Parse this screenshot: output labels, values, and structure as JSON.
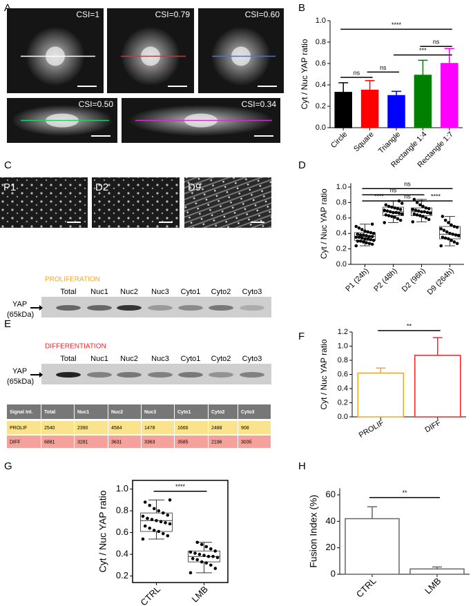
{
  "panel_labels": [
    "A",
    "B",
    "C",
    "D",
    "E",
    "F",
    "G",
    "H"
  ],
  "micrographs_a": [
    "CSI=1",
    "CSI=0.79",
    "CSI=0.60",
    "CSI=0.50",
    "CSI=0.34"
  ],
  "micrographs_c": [
    "P1",
    "D2",
    "D9"
  ],
  "blot": {
    "proliferation": {
      "title": "PROLIFERATION",
      "lanes": [
        "Total",
        "Nuc1",
        "Nuc2",
        "Nuc3",
        "Cyto1",
        "Cyto2",
        "Cyto3"
      ],
      "protein": "YAP",
      "size": "(65kDa)"
    },
    "differentiation": {
      "title": "DIFFERENTIATION",
      "lanes": [
        "Total",
        "Nuc1",
        "Nuc2",
        "Nuc3",
        "Cyto1",
        "Cyto2",
        "Cyto3"
      ],
      "protein": "YAP",
      "size": "(65kDa)"
    }
  },
  "table": {
    "header": [
      "Signal Int.",
      "Total",
      "Nuc1",
      "Nuc2",
      "Nuc3",
      "Cyto1",
      "Cyto2",
      "Cyto3"
    ],
    "rows": [
      [
        "PROLIF",
        "2540",
        "2390",
        "4584",
        "1478",
        "1666",
        "2488",
        "908"
      ],
      [
        "DIFF",
        "6881",
        "3281",
        "3631",
        "3363",
        "3585",
        "2196",
        "3035"
      ]
    ]
  },
  "chart_data": [
    {
      "type": "bar",
      "ylabel": "Cyt / Nuc YAP ratio",
      "categories": [
        "Circle",
        "Square",
        "Triangle",
        "Rectangle 1:4",
        "Rectangle 1:7"
      ],
      "values": [
        0.33,
        0.35,
        0.3,
        0.49,
        0.6
      ],
      "errors": [
        0.09,
        0.09,
        0.04,
        0.14,
        0.14
      ],
      "colors": [
        "#000000",
        "#ff0000",
        "#0000ff",
        "#008000",
        "#ff00ff"
      ],
      "filled": true,
      "ylim": [
        0,
        1
      ],
      "yticks": [
        {
          "value": 0,
          "label": "0.0"
        },
        {
          "value": 0.2,
          "label": "0.2"
        },
        {
          "value": 0.4,
          "label": "0.4"
        },
        {
          "value": 0.6,
          "label": "0.6"
        },
        {
          "value": 0.8,
          "label": "0.8"
        },
        {
          "value": 1,
          "label": "1.0"
        }
      ],
      "annotations": [
        "ns",
        "ns",
        "***",
        "ns",
        "****"
      ]
    },
    {
      "type": "box",
      "ylabel": "Cyt / Nuc YAP ratio",
      "categories": [
        "P1 (24h)",
        "P2 (48h)",
        "D2 (96h)",
        "D9 (264h)"
      ],
      "boxes": [
        {
          "min": 0.24,
          "q1": 0.31,
          "median": 0.36,
          "q3": 0.41,
          "max": 0.52,
          "points": [
            0.24,
            0.26,
            0.27,
            0.28,
            0.29,
            0.3,
            0.3,
            0.31,
            0.32,
            0.33,
            0.33,
            0.34,
            0.35,
            0.35,
            0.36,
            0.36,
            0.37,
            0.38,
            0.38,
            0.39,
            0.4,
            0.41,
            0.42,
            0.43,
            0.45,
            0.47,
            0.49,
            0.52
          ]
        },
        {
          "min": 0.54,
          "q1": 0.63,
          "median": 0.68,
          "q3": 0.74,
          "max": 0.82,
          "points": [
            0.54,
            0.57,
            0.59,
            0.61,
            0.62,
            0.63,
            0.64,
            0.65,
            0.66,
            0.67,
            0.67,
            0.68,
            0.69,
            0.7,
            0.71,
            0.72,
            0.73,
            0.74,
            0.75,
            0.77,
            0.79,
            0.82
          ]
        },
        {
          "min": 0.55,
          "q1": 0.63,
          "median": 0.68,
          "q3": 0.73,
          "max": 0.84,
          "points": [
            0.55,
            0.58,
            0.6,
            0.62,
            0.63,
            0.64,
            0.65,
            0.66,
            0.67,
            0.68,
            0.68,
            0.69,
            0.7,
            0.71,
            0.72,
            0.73,
            0.75,
            0.77,
            0.8,
            0.84
          ]
        },
        {
          "min": 0.24,
          "q1": 0.33,
          "median": 0.39,
          "q3": 0.49,
          "max": 0.62,
          "points": [
            0.24,
            0.27,
            0.29,
            0.31,
            0.33,
            0.34,
            0.35,
            0.37,
            0.38,
            0.39,
            0.4,
            0.42,
            0.44,
            0.46,
            0.48,
            0.49,
            0.51,
            0.54,
            0.57,
            0.62
          ]
        }
      ],
      "ylim": [
        0,
        1.05
      ],
      "yticks": [
        {
          "value": 0,
          "label": "0.0"
        },
        {
          "value": 0.2,
          "label": "0.2"
        },
        {
          "value": 0.4,
          "label": "0.4"
        },
        {
          "value": 0.6,
          "label": "0.6"
        },
        {
          "value": 0.8,
          "label": "0.8"
        },
        {
          "value": 1,
          "label": "1.0"
        }
      ],
      "annotations": [
        "ns",
        "ns",
        "****",
        "ns",
        "****"
      ]
    },
    {
      "type": "bar",
      "ylabel": "Cyt / Nuc YAP ratio",
      "categories": [
        "PROLIF",
        "DIFF"
      ],
      "values": [
        0.62,
        0.87
      ],
      "errors": [
        0.07,
        0.25
      ],
      "colors": [
        "#f5a623",
        "#ff2020"
      ],
      "filled": false,
      "ylim": [
        0,
        1.2
      ],
      "yticks": [
        {
          "value": 0,
          "label": "0.0"
        },
        {
          "value": 0.2,
          "label": "0.2"
        },
        {
          "value": 0.4,
          "label": "0.4"
        },
        {
          "value": 0.6,
          "label": "0.6"
        },
        {
          "value": 0.8,
          "label": "0.8"
        },
        {
          "value": 1,
          "label": "1.0"
        },
        {
          "value": 1.2,
          "label": "1.2"
        }
      ],
      "annotations": [
        "**"
      ]
    },
    {
      "type": "box",
      "ylabel": "Cyt / Nuc YAP ratio",
      "categories": [
        "CTRL",
        "LMB"
      ],
      "boxes": [
        {
          "min": 0.54,
          "q1": 0.61,
          "median": 0.71,
          "q3": 0.78,
          "max": 0.9,
          "points": [
            0.54,
            0.57,
            0.59,
            0.61,
            0.62,
            0.64,
            0.66,
            0.68,
            0.69,
            0.7,
            0.71,
            0.72,
            0.73,
            0.75,
            0.76,
            0.78,
            0.8,
            0.82,
            0.85,
            0.88,
            0.9
          ]
        },
        {
          "min": 0.23,
          "q1": 0.33,
          "median": 0.38,
          "q3": 0.43,
          "max": 0.51,
          "points": [
            0.23,
            0.27,
            0.3,
            0.32,
            0.33,
            0.35,
            0.36,
            0.37,
            0.38,
            0.38,
            0.39,
            0.4,
            0.41,
            0.42,
            0.43,
            0.45,
            0.47,
            0.49,
            0.51
          ]
        }
      ],
      "ylim": [
        0.14,
        1.08
      ],
      "yticks": [
        0.2,
        0.4,
        0.6,
        0.8,
        {
          "value": 1,
          "label": "1.0"
        }
      ],
      "annotations": [
        "****"
      ]
    },
    {
      "type": "bar",
      "ylabel": "Fusion Index (%)",
      "categories": [
        "CTRL",
        "LMB"
      ],
      "values": [
        42,
        4
      ],
      "errors": [
        9,
        1.5
      ],
      "colors": [
        "#666666",
        "#666666"
      ],
      "filled": false,
      "ylim": [
        0,
        65
      ],
      "yticks": [
        0,
        20,
        40,
        60
      ],
      "annotations": [
        "**"
      ]
    }
  ]
}
